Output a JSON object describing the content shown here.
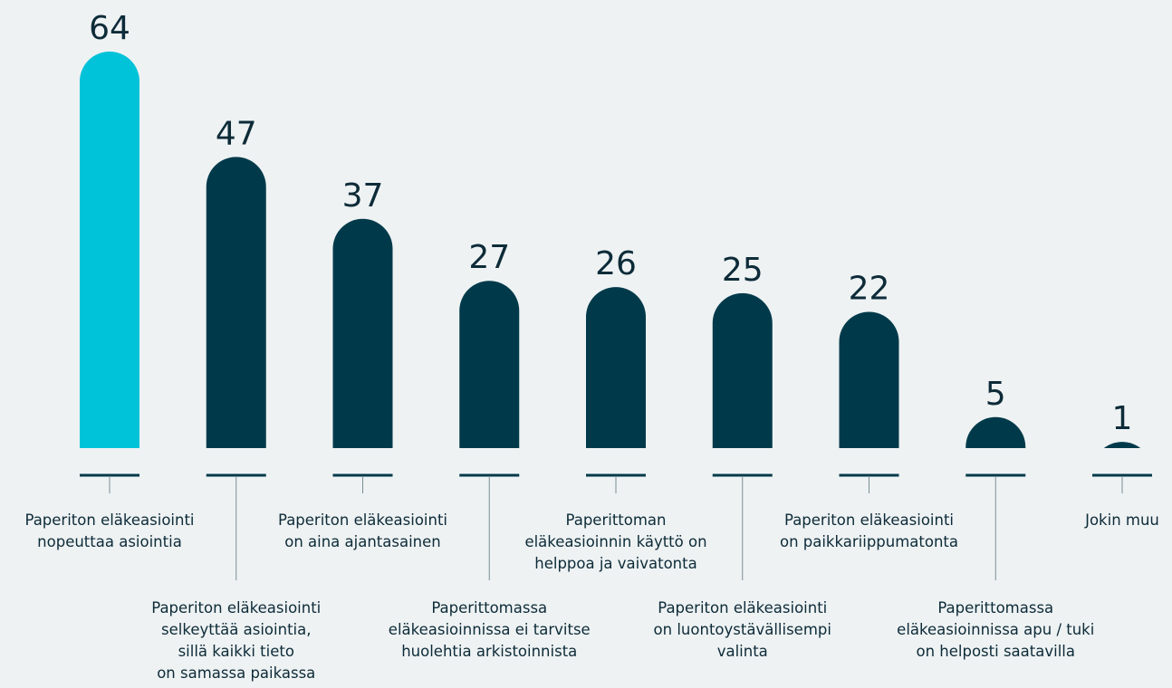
{
  "chart_data": {
    "type": "bar",
    "categories": [
      "Paperiton eläkeasiointi\nnopeuttaa asiointia",
      "Paperiton eläkeasiointi\nselkeyttää asiointia,\nsillä kaikki tieto\non samassa paikassa",
      "Paperiton eläkeasiointi\non aina ajantasainen",
      "Paperittomassa\neläkeasioinnissa ei tarvitse\nhuolehtia arkistoinnista",
      "Paperittoman\neläkeasioinnin käyttö on\nhelppoa ja vaivatonta",
      "Paperiton eläkeasiointi\non luontoystävällisempi\nvalinta",
      "Paperiton eläkeasiointi\non paikkariippumatonta",
      "Paperittomassa\neläkeasioinnissa apu / tuki\non helposti saatavilla",
      "Jokin muu"
    ],
    "values": [
      64,
      47,
      37,
      27,
      26,
      25,
      22,
      5,
      1
    ],
    "colors": [
      "#00c2d8",
      "#003a4a",
      "#003a4a",
      "#003a4a",
      "#003a4a",
      "#003a4a",
      "#003a4a",
      "#003a4a",
      "#003a4a"
    ]
  }
}
